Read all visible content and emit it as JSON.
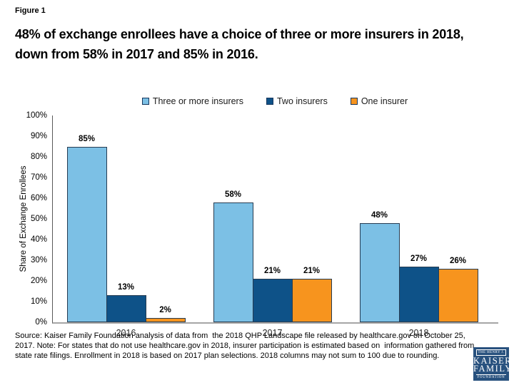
{
  "figure_label": "Figure 1",
  "title": "48% of exchange enrollees have a choice of three or more insurers in 2018, down from 58% in 2017 and 85% in 2016.",
  "source_note": "Source: Kaiser Family Foundation analysis of data from  the 2018 QHP Landscape file released by healthcare.gov on October 25, 2017. Note: For states that do not use healthcare.gov in 2018, insurer participation is estimated based on  information gathered from state rate filings. Enrollment in 2018 is based on 2017 plan selections. 2018 columns may not sum to 100 due to rounding.",
  "logo": {
    "line1": "THE HENRY J.",
    "line2": "KAISER",
    "line3": "FAMILY",
    "line4": "FOUNDATION",
    "background_color": "#28517E"
  },
  "colors": {
    "three_or_more_insurers": "#7CC0E5",
    "two_insurers": "#0E5288",
    "one_insurer": "#F7941E",
    "bar_border": "#263C52",
    "x_axis_line": "#A6A6A6",
    "y_axis_line": "#595959"
  },
  "chart_data": {
    "type": "bar",
    "categories": [
      "2016",
      "2017",
      "2018"
    ],
    "series": [
      {
        "name": "Three or more insurers",
        "color": "#7CC0E5",
        "values": [
          85,
          58,
          48
        ]
      },
      {
        "name": "Two insurers",
        "color": "#0E5288",
        "values": [
          13,
          21,
          27
        ]
      },
      {
        "name": "One insurer",
        "color": "#F7941E",
        "values": [
          2,
          21,
          26
        ]
      }
    ],
    "ylabel": "Share of Exchange Enrollees",
    "xlabel": "",
    "ylim": [
      0,
      100
    ],
    "ytick_step": 10,
    "ytick_suffix": "%",
    "value_label_suffix": "%",
    "legend_position": "top",
    "grid": false
  }
}
